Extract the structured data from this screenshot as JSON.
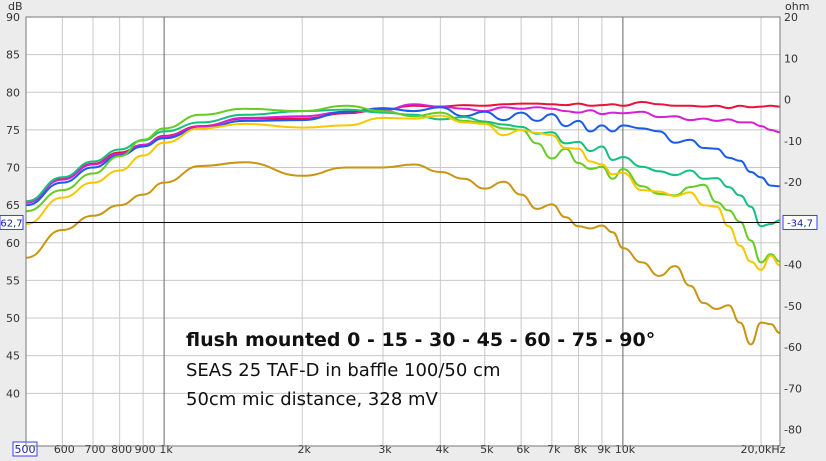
{
  "chart_data": {
    "type": "line",
    "title": "",
    "left_unit": "dB",
    "right_unit": "ohm",
    "x_scale": "log",
    "xlim": [
      500,
      22000
    ],
    "ylim": [
      33,
      90
    ],
    "y2lim": [
      -84,
      20
    ],
    "grid": true,
    "x_ticks": [
      {
        "value": 500,
        "label": "500",
        "boxed": true
      },
      {
        "value": 600,
        "label": "600"
      },
      {
        "value": 700,
        "label": "700"
      },
      {
        "value": 800,
        "label": "800"
      },
      {
        "value": 900,
        "label": "900"
      },
      {
        "value": 1000,
        "label": "1k"
      },
      {
        "value": 2000,
        "label": "2k"
      },
      {
        "value": 3000,
        "label": "3k"
      },
      {
        "value": 4000,
        "label": "4k"
      },
      {
        "value": 5000,
        "label": "5k"
      },
      {
        "value": 6000,
        "label": "6k"
      },
      {
        "value": 7000,
        "label": "7k"
      },
      {
        "value": 8000,
        "label": "8k"
      },
      {
        "value": 9000,
        "label": "9k"
      },
      {
        "value": 10000,
        "label": "10k"
      },
      {
        "value": 20000,
        "label": "20,0kHz"
      }
    ],
    "y_ticks_left": [
      {
        "value": 90,
        "label": "90"
      },
      {
        "value": 85,
        "label": "85"
      },
      {
        "value": 80,
        "label": "80"
      },
      {
        "value": 75,
        "label": "75"
      },
      {
        "value": 70,
        "label": "70"
      },
      {
        "value": 65,
        "label": "65"
      },
      {
        "value": 60,
        "label": "60"
      },
      {
        "value": 55,
        "label": "55"
      },
      {
        "value": 50,
        "label": "50"
      },
      {
        "value": 45,
        "label": "45"
      },
      {
        "value": 40,
        "label": "40"
      }
    ],
    "y_ticks_right": [
      {
        "value": 20,
        "label": "20"
      },
      {
        "value": 10,
        "label": "10"
      },
      {
        "value": 0,
        "label": "0"
      },
      {
        "value": -10,
        "label": "-10"
      },
      {
        "value": -20,
        "label": "-20"
      },
      {
        "value": -30,
        "label": "-30"
      },
      {
        "value": -40,
        "label": "-40"
      },
      {
        "value": -50,
        "label": "-50"
      },
      {
        "value": -60,
        "label": "-60"
      },
      {
        "value": -70,
        "label": "-70"
      },
      {
        "value": -80,
        "label": "-80"
      }
    ],
    "cursor": {
      "y": 62.7,
      "left_label": "62,7",
      "right_label": "-34,7"
    },
    "annotations": [
      "flush mounted 0 - 15 - 30 - 45 - 60 - 75 - 90°",
      "SEAS 25 TAF-D in baffle 100/50 cm",
      "50cm mic distance, 328 mV"
    ],
    "series": [
      {
        "color": "#e8133a",
        "x": [
          500,
          600,
          700,
          800,
          900,
          1000,
          1200,
          1500,
          2000,
          2500,
          3000,
          3500,
          4000,
          4500,
          5000,
          5500,
          6000,
          6500,
          7000,
          7500,
          8000,
          8500,
          9000,
          9500,
          10000,
          11000,
          12000,
          13000,
          14000,
          15000,
          16000,
          17000,
          18000,
          19000,
          20000,
          21000,
          22000
        ],
        "y": [
          65.5,
          68.5,
          70.5,
          72,
          73,
          74.2,
          75.5,
          76.5,
          76.5,
          77.2,
          77.7,
          78.2,
          78.1,
          78.3,
          78.2,
          78.4,
          78.5,
          78.5,
          78.4,
          78.3,
          78.5,
          78.2,
          78.3,
          78.4,
          78.2,
          78.7,
          78.4,
          78.2,
          78.2,
          78.1,
          78.2,
          77.9,
          78.2,
          78,
          78.1,
          78.2,
          78.1
        ]
      },
      {
        "color": "#d61fd6",
        "x": [
          500,
          600,
          700,
          800,
          900,
          1000,
          1200,
          1500,
          2000,
          2500,
          3000,
          3500,
          4000,
          4500,
          5000,
          5500,
          6000,
          6500,
          7000,
          7500,
          8000,
          8500,
          9000,
          9500,
          10000,
          11000,
          12000,
          13000,
          14000,
          15000,
          16000,
          17000,
          18000,
          19000,
          20000,
          21000,
          22000
        ],
        "y": [
          65.3,
          68.4,
          70.4,
          71.8,
          73,
          74.1,
          75.4,
          76.6,
          76.8,
          77.4,
          77.6,
          78.4,
          78.1,
          77.8,
          77.5,
          78,
          77.8,
          78,
          77.8,
          77.5,
          77.3,
          77.6,
          77.1,
          77.3,
          77.2,
          77.4,
          76.7,
          76.8,
          76.3,
          76.5,
          76.2,
          76.4,
          76,
          76,
          75.5,
          75,
          74.7
        ]
      },
      {
        "color": "#1a5ce8",
        "x": [
          500,
          600,
          700,
          800,
          900,
          1000,
          1200,
          1500,
          2000,
          2500,
          3000,
          3500,
          4000,
          4500,
          5000,
          5500,
          6000,
          6500,
          7000,
          7500,
          8000,
          8500,
          9000,
          9500,
          10000,
          11000,
          12000,
          13000,
          14000,
          15000,
          16000,
          17000,
          18000,
          19000,
          20000,
          21000,
          22000
        ],
        "y": [
          65,
          68,
          70,
          71.6,
          72.8,
          73.9,
          75.2,
          76.2,
          76.3,
          77.4,
          77.9,
          77.5,
          78,
          76.8,
          77.4,
          76.3,
          77.3,
          76.2,
          77.1,
          75.5,
          76.2,
          74.8,
          75.6,
          74.8,
          75.6,
          75.2,
          74.8,
          73.3,
          73.7,
          72.6,
          72.5,
          71.3,
          70.9,
          69.4,
          68.7,
          67.6,
          67.5
        ]
      },
      {
        "color": "#14c080",
        "x": [
          500,
          600,
          700,
          800,
          900,
          1000,
          1200,
          1500,
          2000,
          2500,
          3000,
          3500,
          4000,
          4500,
          5000,
          5500,
          6000,
          6500,
          7000,
          7500,
          8000,
          8500,
          9000,
          9500,
          10000,
          11000,
          12000,
          13000,
          14000,
          15000,
          16000,
          17000,
          18000,
          19000,
          20000,
          21000,
          22000
        ],
        "y": [
          65.5,
          68.7,
          70.8,
          72.4,
          73.6,
          74.8,
          76,
          77,
          77.5,
          77.7,
          77.3,
          77,
          76.4,
          76.7,
          76.1,
          75.7,
          75.4,
          74.5,
          74.7,
          73.2,
          73.4,
          72.2,
          72.8,
          71,
          71.4,
          70.1,
          69.5,
          69,
          69.6,
          68.5,
          68.6,
          67.4,
          66.3,
          64.8,
          62.2,
          62.5,
          63
        ]
      },
      {
        "color": "#66cc22",
        "x": [
          500,
          600,
          700,
          800,
          900,
          1000,
          1200,
          1500,
          2000,
          2500,
          3000,
          3500,
          4000,
          4500,
          5000,
          5500,
          6000,
          6500,
          7000,
          7500,
          8000,
          8500,
          9000,
          9500,
          10000,
          11000,
          12000,
          13000,
          14000,
          15000,
          16000,
          17000,
          18000,
          19000,
          20000,
          21000,
          22000
        ],
        "y": [
          64.2,
          67,
          69.2,
          71.5,
          73.7,
          75.2,
          77,
          77.8,
          77.5,
          78.2,
          77.5,
          76.8,
          77.3,
          76.2,
          75.9,
          75.2,
          75,
          73.2,
          71.2,
          72.5,
          70.6,
          69.8,
          70.1,
          68.5,
          69.8,
          67.5,
          66.5,
          66.3,
          67.4,
          67.7,
          65.4,
          64.3,
          62.8,
          60.3,
          57.4,
          58.5,
          57.5
        ]
      },
      {
        "color": "#f5c800",
        "x": [
          500,
          600,
          700,
          800,
          900,
          1000,
          1200,
          1500,
          2000,
          2500,
          3000,
          3500,
          4000,
          4500,
          5000,
          5500,
          6000,
          6500,
          7000,
          7500,
          8000,
          8500,
          9000,
          9500,
          10000,
          11000,
          12000,
          13000,
          14000,
          15000,
          16000,
          17000,
          18000,
          19000,
          20000,
          21000,
          22000
        ],
        "y": [
          62.5,
          66,
          68,
          69.6,
          71.6,
          73.3,
          75.2,
          75.8,
          75.3,
          75.6,
          76.6,
          76.5,
          76.9,
          76,
          75.8,
          74.3,
          75,
          74.6,
          74.3,
          72.6,
          72.5,
          70.8,
          70.4,
          69.1,
          69.3,
          67,
          66.8,
          66.2,
          66.7,
          65,
          64.8,
          62.2,
          59.6,
          57.5,
          56.4,
          58.3,
          57
        ]
      },
      {
        "color": "#c89614",
        "x": [
          500,
          600,
          700,
          800,
          900,
          1000,
          1200,
          1500,
          2000,
          2500,
          3000,
          3500,
          4000,
          4500,
          5000,
          5500,
          6000,
          6500,
          7000,
          7500,
          8000,
          8500,
          9000,
          9500,
          10000,
          11000,
          12000,
          13000,
          14000,
          15000,
          16000,
          17000,
          18000,
          19000,
          20000,
          21000,
          22000
        ],
        "y": [
          58,
          61.7,
          63.6,
          65,
          66.4,
          68,
          70.2,
          70.7,
          68.9,
          70,
          70,
          70.4,
          69.4,
          68.5,
          67.2,
          68.1,
          66.4,
          64.5,
          65.1,
          63.4,
          62.2,
          61.9,
          62.3,
          61.4,
          59.3,
          57.4,
          55.6,
          56.9,
          54.3,
          52,
          51.2,
          51.7,
          49.4,
          46.5,
          49.4,
          49.2,
          48
        ]
      }
    ]
  }
}
